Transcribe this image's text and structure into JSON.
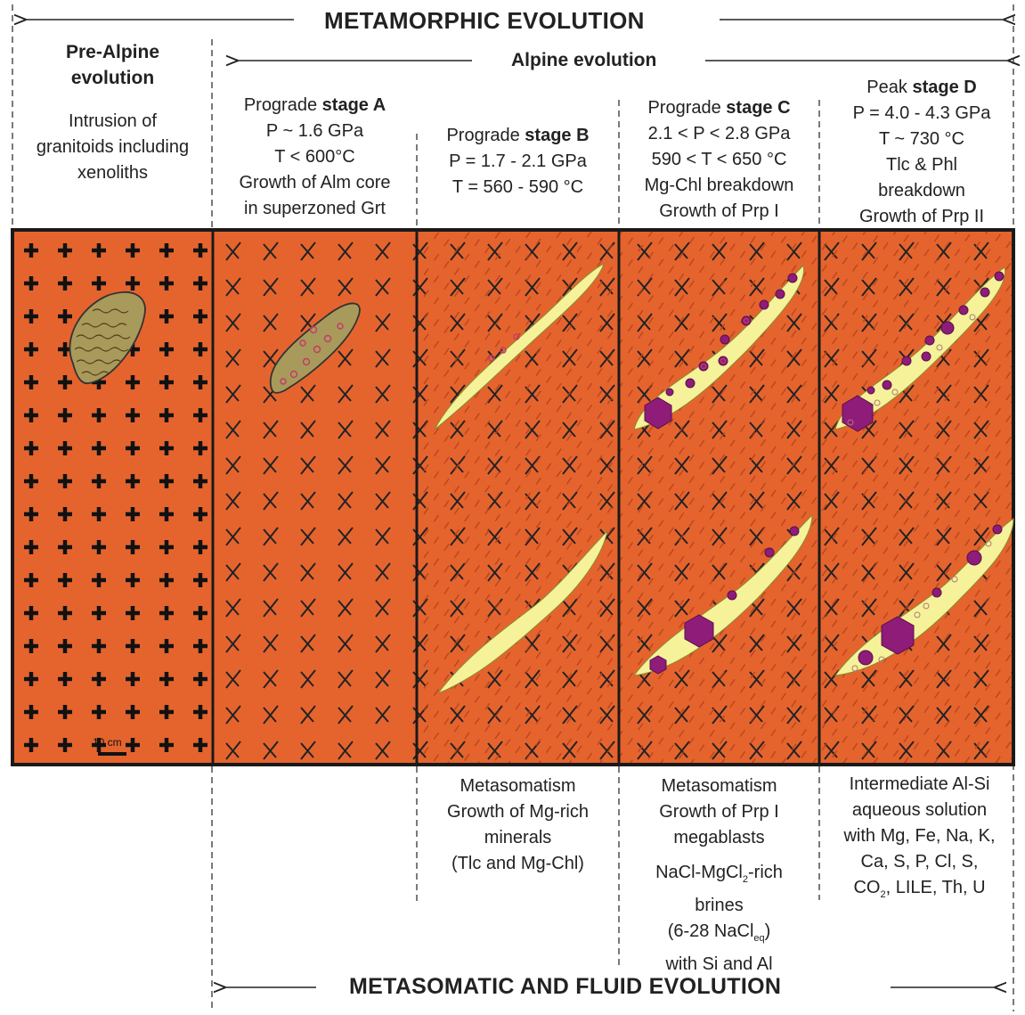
{
  "headers": {
    "metamorphic": "METAMORPHIC EVOLUTION",
    "alpine": "Alpine evolution",
    "metasomatic": "METASOMATIC AND FLUID EVOLUTION"
  },
  "preAlpine": {
    "title1": "Pre-Alpine",
    "title2": "evolution",
    "lines": [
      "Intrusion of",
      "granitoids including",
      "xenoliths"
    ],
    "scale": "10 cm"
  },
  "stageA": {
    "line1_prefix": "Prograde ",
    "line1_bold": "stage A",
    "lines": [
      "P ~ 1.6 GPa",
      "T < 600°C",
      "Growth of Alm core",
      "in superzoned Grt"
    ]
  },
  "stageB": {
    "line1_prefix": "Prograde ",
    "line1_bold": "stage B",
    "lines": [
      "P = 1.7 - 2.1 GPa",
      "T = 560 - 590 °C"
    ],
    "bottom": [
      "Metasomatism",
      "Growth of Mg-rich",
      "minerals",
      "(Tlc and Mg-Chl)"
    ]
  },
  "stageC": {
    "line1_prefix": "Prograde ",
    "line1_bold": "stage C",
    "lines": [
      "2.1 < P < 2.8 GPa",
      "590 < T < 650 °C",
      "Mg-Chl breakdown",
      "Growth of Prp I"
    ],
    "bottom": [
      "Metasomatism",
      "Growth of Prp I",
      "megablasts"
    ],
    "brines_pre": "NaCl-MgCl",
    "brines_sub": "2",
    "brines_post": "-rich",
    "brines2": "brines",
    "eq_pre": "(6-28 NaCl",
    "eq_sub": "eq",
    "eq_post": ")",
    "siAl": "with Si and Al"
  },
  "stageD": {
    "line1_prefix": "Peak ",
    "line1_bold": "stage D",
    "lines": [
      "P = 4.0 - 4.3 GPa",
      "T ~ 730 °C",
      "Tlc & Phl",
      "breakdown",
      "Growth of Prp II"
    ],
    "bottom": [
      "Intermediate Al-Si",
      "aqueous solution",
      "with Mg, Fe, Na, K,",
      "Ca, S, P, Cl, S,"
    ],
    "co2_pre": "CO",
    "co2_sub": "2",
    "co2_post": ", LILE, Th, U"
  },
  "colors": {
    "rock": "#e5642e",
    "vein": "#f5f29a",
    "xenolith": "#a89a5a",
    "garnet": "#8e1c78"
  }
}
